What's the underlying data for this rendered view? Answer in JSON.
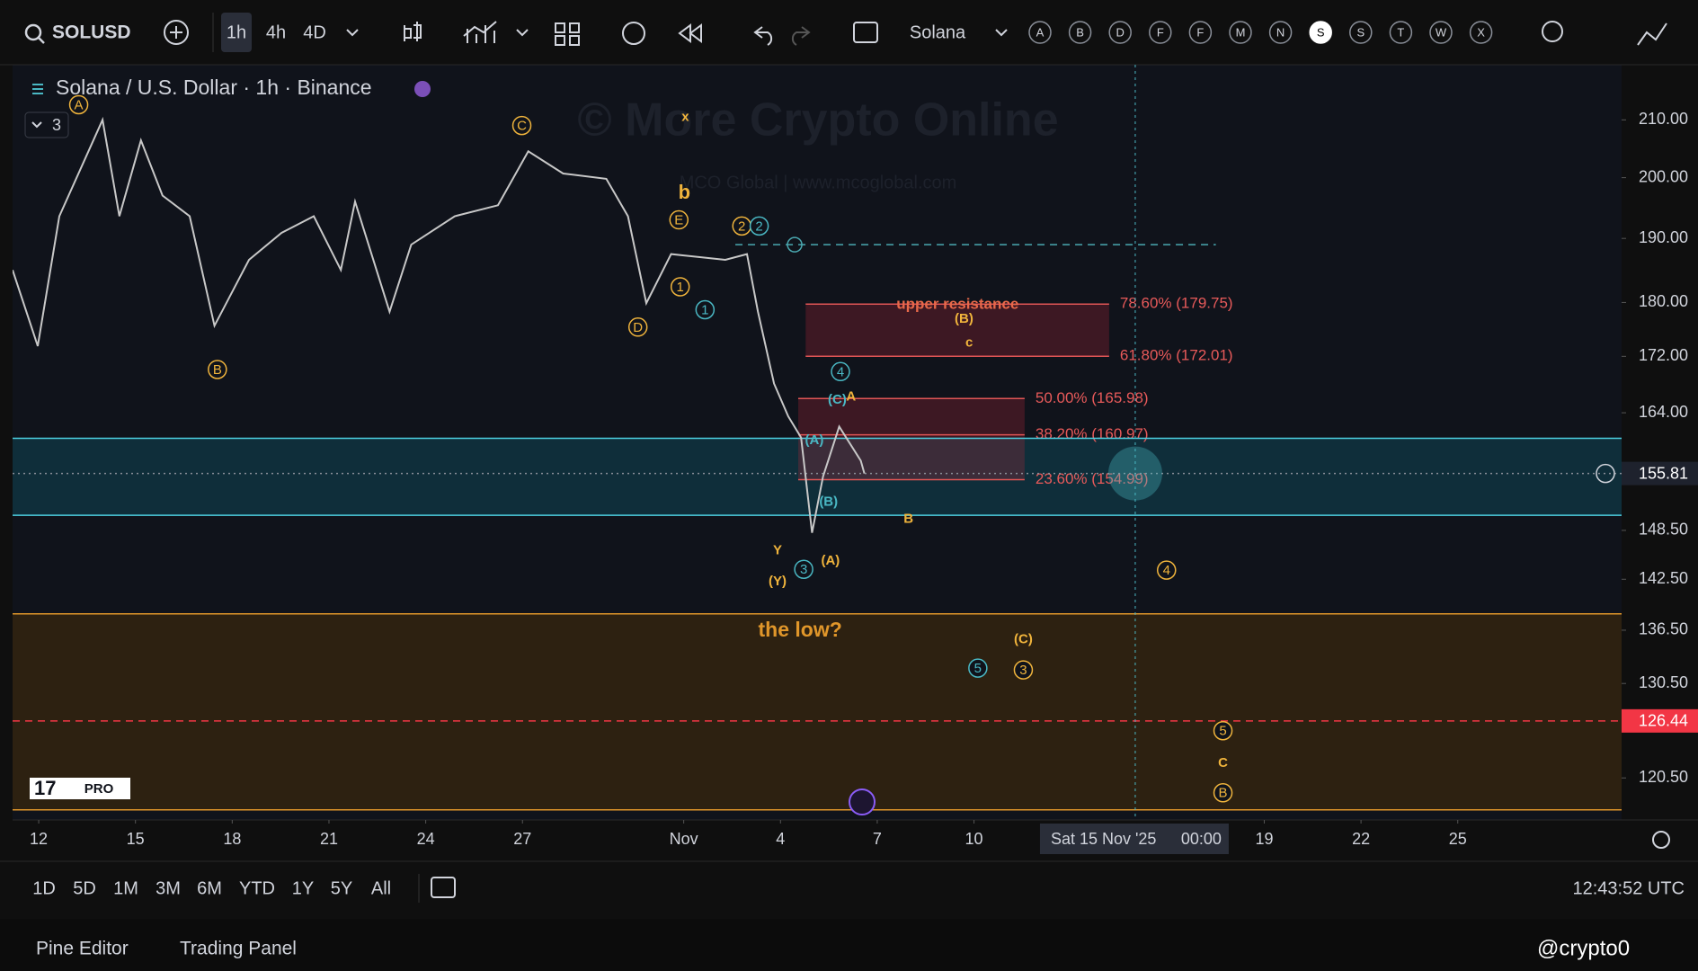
{
  "toolbar": {
    "symbol": "SOLUSD",
    "intervals": [
      "1h",
      "4h",
      "4D"
    ],
    "indicator_name": "Solana",
    "letters": [
      "A",
      "B",
      "D",
      "F",
      "F",
      "M",
      "N",
      "S",
      "S",
      "T",
      "W",
      "X"
    ]
  },
  "legend": {
    "title": "Solana / U.S. Dollar · 1h · Binance",
    "collapsed_count": "3"
  },
  "watermark": {
    "main": "© More Crypto Online",
    "sub": "MCO Global  |  www.mcoglobal.com"
  },
  "logo": "PRO",
  "chart_data": {
    "type": "line",
    "color": "#c8c8c8",
    "log_scale": true,
    "grid": false,
    "xlim": [
      11.19,
      61.08
    ],
    "ylim": [
      116.3,
      220
    ],
    "x": [
      11.19,
      11.97,
      12.64,
      13.98,
      14.5,
      15.17,
      15.84,
      16.68,
      17.45,
      18.52,
      19.53,
      20.53,
      21.37,
      21.81,
      22.88,
      23.55,
      24.9,
      26.24,
      27.18,
      28.26,
      29.6,
      30.27,
      30.84,
      31.61,
      33.29,
      33.96,
      34.3,
      34.8,
      35.24,
      35.64,
      35.98,
      36.32,
      36.82,
      37.49,
      37.6
    ],
    "values": [
      185,
      173.5,
      193.6,
      210,
      193.6,
      206.4,
      197,
      193.6,
      176.5,
      186.6,
      190.9,
      193.6,
      185,
      196,
      178.6,
      189,
      193.6,
      195.4,
      204.5,
      200.7,
      199.8,
      193.6,
      179.9,
      187.5,
      186.6,
      187.5,
      178.6,
      168.1,
      163.5,
      160.6,
      148.2,
      155.4,
      162.1,
      157.5,
      155.81
    ],
    "xticks": [
      12,
      15,
      18,
      21,
      24,
      27,
      {
        "value": 32,
        "label": "Nov"
      },
      {
        "value": 35,
        "label": "4"
      },
      {
        "value": 38,
        "label": "7"
      },
      {
        "value": 41,
        "label": "10"
      },
      {
        "value": 50,
        "label": "19"
      },
      {
        "value": 53,
        "label": "22"
      },
      {
        "value": 56,
        "label": "25"
      }
    ],
    "yticks": [
      {
        "value": 210,
        "label": "210.00"
      },
      {
        "value": 200,
        "label": "200.00"
      },
      {
        "value": 190,
        "label": "190.00"
      },
      {
        "value": 180,
        "label": "180.00"
      },
      {
        "value": 172,
        "label": "172.00"
      },
      {
        "value": 164,
        "label": "164.00"
      },
      {
        "value": 148.5,
        "label": "148.50"
      },
      {
        "value": 142.5,
        "label": "142.50"
      },
      {
        "value": 136.5,
        "label": "136.50"
      },
      {
        "value": 130.5,
        "label": "130.50"
      },
      {
        "value": 120.5,
        "label": "120.50"
      }
    ],
    "crosshair": {
      "x": 46,
      "date": "Sat 15 Nov '25",
      "time": "00:00"
    },
    "zones": [
      {
        "from": 150.4,
        "to": 160.5,
        "color": "#0f3440"
      },
      {
        "from": 117.3,
        "to": 138.4,
        "color": "#33250f"
      }
    ],
    "levels": [
      {
        "value": 160.5,
        "color": "#4dd0e1",
        "dash": "solid"
      },
      {
        "value": 150.4,
        "color": "#4dd0e1",
        "dash": "solid"
      },
      {
        "value": 138.4,
        "color": "#e0962a",
        "dash": "solid"
      },
      {
        "value": 117.3,
        "color": "#e0962a",
        "dash": "solid"
      },
      {
        "value": 126.44,
        "color": "#f23645",
        "dash": "dashed",
        "tag": true
      },
      {
        "value": 155.81,
        "color": "#8a8f99",
        "dash": "dotted",
        "tag": true
      },
      {
        "value": 189.0,
        "color": "#4aa8b0",
        "dash": "dashed",
        "x": [
          33.6,
          48.5
        ]
      }
    ],
    "fib_levels": [
      {
        "label": "78.60% (179.75)",
        "value": 179.75,
        "x": [
          35.78,
          45.19
        ]
      },
      {
        "label": "61.80% (172.01)",
        "value": 172.01,
        "x": [
          35.78,
          45.19
        ]
      },
      {
        "label": "50.00% (165.98)",
        "value": 165.98,
        "x": [
          35.55,
          42.57
        ]
      },
      {
        "label": "38.20% (160.97)",
        "value": 160.97,
        "x": [
          35.55,
          42.57
        ]
      },
      {
        "label": "23.60% (154.99)",
        "value": 154.99,
        "x": [
          35.55,
          42.57
        ]
      }
    ],
    "annotations": [
      {
        "text": "A",
        "x": 13.24,
        "y": 212.7,
        "color": "#f0b43c",
        "circled": true
      },
      {
        "text": "B",
        "x": 17.54,
        "y": 170.1,
        "color": "#f0b43c",
        "circled": true
      },
      {
        "text": "C",
        "x": 26.98,
        "y": 209.0,
        "color": "#f0b43c",
        "circled": true
      },
      {
        "text": "D",
        "x": 30.58,
        "y": 176.3,
        "color": "#f0b43c",
        "circled": true
      },
      {
        "text": "E",
        "x": 31.85,
        "y": 193.0,
        "color": "#f0b43c",
        "circled": true
      },
      {
        "text": "1",
        "x": 31.89,
        "y": 182.4,
        "color": "#f0b43c",
        "circled": true
      },
      {
        "text": "2",
        "x": 33.8,
        "y": 192.0,
        "color": "#f0b43c",
        "circled": true
      },
      {
        "text": "4",
        "x": 46.97,
        "y": 143.6,
        "color": "#f0b43c",
        "circled": true
      },
      {
        "text": "3",
        "x": 42.53,
        "y": 132.0,
        "color": "#f0b43c",
        "circled": true
      },
      {
        "text": "5",
        "x": 48.72,
        "y": 125.4,
        "color": "#f0b43c",
        "circled": true
      },
      {
        "text": "B",
        "x": 48.72,
        "y": 119.0,
        "color": "#f0b43c",
        "circled": true
      },
      {
        "text": "x",
        "x": 32.05,
        "y": 210.6,
        "color": "#f0b43c",
        "circled": false
      },
      {
        "text": "b",
        "x": 32.02,
        "y": 197.5,
        "color": "#f0b43c",
        "circled": false
      },
      {
        "text": "(B)",
        "x": 40.69,
        "y": 177.6,
        "color": "#f0b43c",
        "circled": false
      },
      {
        "text": "c",
        "x": 40.85,
        "y": 174.1,
        "color": "#f0b43c",
        "circled": false
      },
      {
        "text": "A",
        "x": 37.19,
        "y": 166.3,
        "color": "#f0b43c",
        "circled": false
      },
      {
        "text": "Y",
        "x": 34.91,
        "y": 146.1,
        "color": "#f0b43c",
        "circled": false
      },
      {
        "text": "(Y)",
        "x": 34.91,
        "y": 142.3,
        "color": "#f0b43c",
        "circled": false
      },
      {
        "text": "(A)",
        "x": 36.55,
        "y": 144.8,
        "color": "#f0b43c",
        "circled": false
      },
      {
        "text": "B",
        "x": 38.97,
        "y": 150.0,
        "color": "#f0b43c",
        "circled": false
      },
      {
        "text": "(C)",
        "x": 42.53,
        "y": 135.5,
        "color": "#f0b43c",
        "circled": false
      },
      {
        "text": "C",
        "x": 48.72,
        "y": 122.1,
        "color": "#f0b43c",
        "circled": false
      },
      {
        "text": "1",
        "x": 32.66,
        "y": 178.9,
        "color": "#4ab8c4",
        "circled": true
      },
      {
        "text": "2",
        "x": 34.34,
        "y": 192.0,
        "color": "#4ab8c4",
        "circled": true
      },
      {
        "text": "4",
        "x": 36.86,
        "y": 169.8,
        "color": "#4ab8c4",
        "circled": true
      },
      {
        "text": "3",
        "x": 35.72,
        "y": 143.7,
        "color": "#4ab8c4",
        "circled": true
      },
      {
        "text": "5",
        "x": 41.12,
        "y": 132.2,
        "color": "#4ab8c4",
        "circled": true
      },
      {
        "text": "(C)",
        "x": 36.76,
        "y": 165.9,
        "color": "#4ab8c4",
        "circled": false
      },
      {
        "text": "(A)",
        "x": 36.05,
        "y": 160.3,
        "color": "#4ab8c4",
        "circled": false
      },
      {
        "text": "(B)",
        "x": 36.49,
        "y": 152.2,
        "color": "#4ab8c4",
        "circled": false
      },
      {
        "text": "the low?",
        "x": 35.61,
        "y": 136.5,
        "color": "#e0962a",
        "circled": false
      },
      {
        "text": "upper resistance",
        "x": 40.49,
        "y": 179.8,
        "color": "#e8694a",
        "circled": false
      }
    ]
  },
  "range_bar": {
    "ranges": [
      "1D",
      "5D",
      "1M",
      "3M",
      "6M",
      "YTD",
      "1Y",
      "5Y",
      "All"
    ],
    "clock": "12:43:52 UTC"
  },
  "bottom_tabs": [
    "Pine Editor",
    "Trading Panel"
  ],
  "corner_watermark": "@crypto0"
}
